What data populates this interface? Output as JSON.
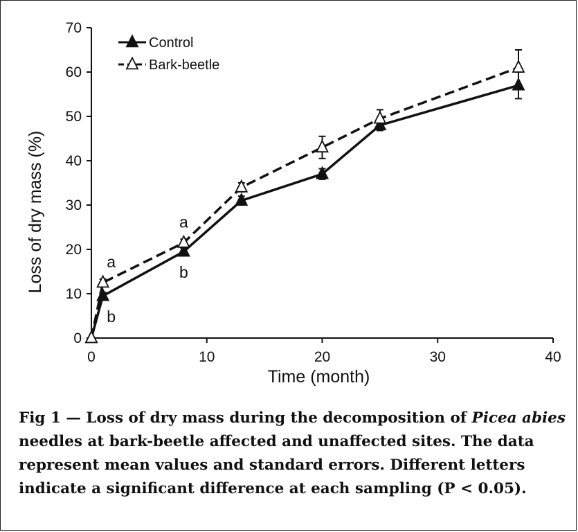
{
  "chart_data": {
    "type": "line",
    "title": "",
    "xlabel": "Time (month)",
    "ylabel": "Loss of dry mass (%)",
    "xlim": [
      0,
      40
    ],
    "ylim": [
      0,
      70
    ],
    "xticks": [
      0,
      10,
      20,
      30,
      40
    ],
    "yticks": [
      0,
      10,
      20,
      30,
      40,
      50,
      60,
      70
    ],
    "grid": false,
    "legend_position": "top-left",
    "series": [
      {
        "name": "Control",
        "marker": "filled-triangle",
        "line_style": "solid",
        "x": [
          0,
          1,
          8,
          13,
          20,
          25,
          37
        ],
        "y": [
          0,
          9.5,
          19.5,
          31,
          37,
          48,
          57
        ],
        "error": [
          0,
          0.8,
          0.8,
          1.0,
          1.2,
          1.2,
          3.0
        ]
      },
      {
        "name": "Bark-beetle",
        "marker": "open-triangle",
        "line_style": "dashed",
        "x": [
          0,
          1,
          8,
          13,
          20,
          25,
          37
        ],
        "y": [
          0,
          12.5,
          21.5,
          34,
          43,
          49.5,
          61
        ],
        "error": [
          0,
          0.8,
          0.8,
          1.0,
          2.5,
          2.0,
          4.0
        ]
      }
    ],
    "annotations": [
      {
        "text": "a",
        "x": 1,
        "y": 12.5,
        "pos": "above"
      },
      {
        "text": "b",
        "x": 1,
        "y": 9.5,
        "pos": "below"
      },
      {
        "text": "a",
        "x": 8,
        "y": 21.5,
        "pos": "above"
      },
      {
        "text": "b",
        "x": 8,
        "y": 19.5,
        "pos": "below"
      }
    ]
  },
  "caption": {
    "prefix": "Fig 1 — Loss of dry mass during the decomposition of ",
    "italic": "Picea abies",
    "suffix": " needles at bark-beetle affected and unaffected sites. The data represent mean values and standard errors. Different letters indicate a significant difference at each sampling (P < 0.05)."
  }
}
